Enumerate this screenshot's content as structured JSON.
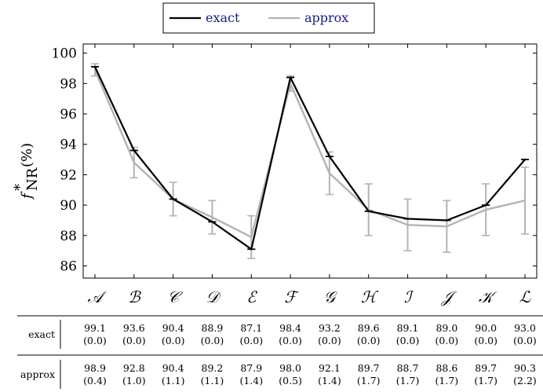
{
  "chart_data": {
    "type": "line",
    "title": "",
    "xlabel": "",
    "ylabel": "f*_NR (%)",
    "ylabel_parts": {
      "symbol": "f",
      "sup": "*",
      "sub": "NR",
      "unit": "(%)"
    },
    "ylim": [
      85.2,
      100.6
    ],
    "yticks": [
      "86",
      "88",
      "90",
      "92",
      "94",
      "96",
      "98",
      "100"
    ],
    "categories": [
      "𝒜",
      "ℬ",
      "𝒞",
      "𝒟",
      "ℰ",
      "ℱ",
      "𝒢",
      "ℋ",
      "ℐ",
      "𝒥",
      "𝒦",
      "ℒ"
    ],
    "grid": false,
    "legend_position": "top-center",
    "series": [
      {
        "name": "exact",
        "color": "#000000",
        "values": [
          99.1,
          93.6,
          90.4,
          88.9,
          87.1,
          98.4,
          93.2,
          89.6,
          89.1,
          89.0,
          90.0,
          93.0
        ],
        "errors": [
          0.0,
          0.0,
          0.0,
          0.0,
          0.0,
          0.0,
          0.0,
          0.0,
          0.0,
          0.0,
          0.0,
          0.0
        ]
      },
      {
        "name": "approx",
        "color": "#b3b3b3",
        "values": [
          98.9,
          92.8,
          90.4,
          89.2,
          87.9,
          98.0,
          92.1,
          89.7,
          88.7,
          88.6,
          89.7,
          90.3
        ],
        "errors": [
          0.4,
          1.0,
          1.1,
          1.1,
          1.4,
          0.5,
          1.4,
          1.7,
          1.7,
          1.7,
          1.7,
          2.2
        ]
      }
    ],
    "table": {
      "rows": [
        {
          "label": "exact",
          "values": [
            "99.1",
            "93.6",
            "90.4",
            "88.9",
            "87.1",
            "98.4",
            "93.2",
            "89.6",
            "89.1",
            "89.0",
            "90.0",
            "93.0"
          ],
          "subs": [
            "(0.0)",
            "(0.0)",
            "(0.0)",
            "(0.0)",
            "(0.0)",
            "(0.0)",
            "(0.0)",
            "(0.0)",
            "(0.0)",
            "(0.0)",
            "(0.0)",
            "(0.0)"
          ]
        },
        {
          "label": "approx",
          "values": [
            "98.9",
            "92.8",
            "90.4",
            "89.2",
            "87.9",
            "98.0",
            "92.1",
            "89.7",
            "88.7",
            "88.6",
            "89.7",
            "90.3"
          ],
          "subs": [
            "(0.4)",
            "(1.0)",
            "(1.1)",
            "(1.1)",
            "(1.4)",
            "(0.5)",
            "(1.4)",
            "(1.7)",
            "(1.7)",
            "(1.7)",
            "(1.7)",
            "(2.2)"
          ]
        }
      ]
    }
  }
}
